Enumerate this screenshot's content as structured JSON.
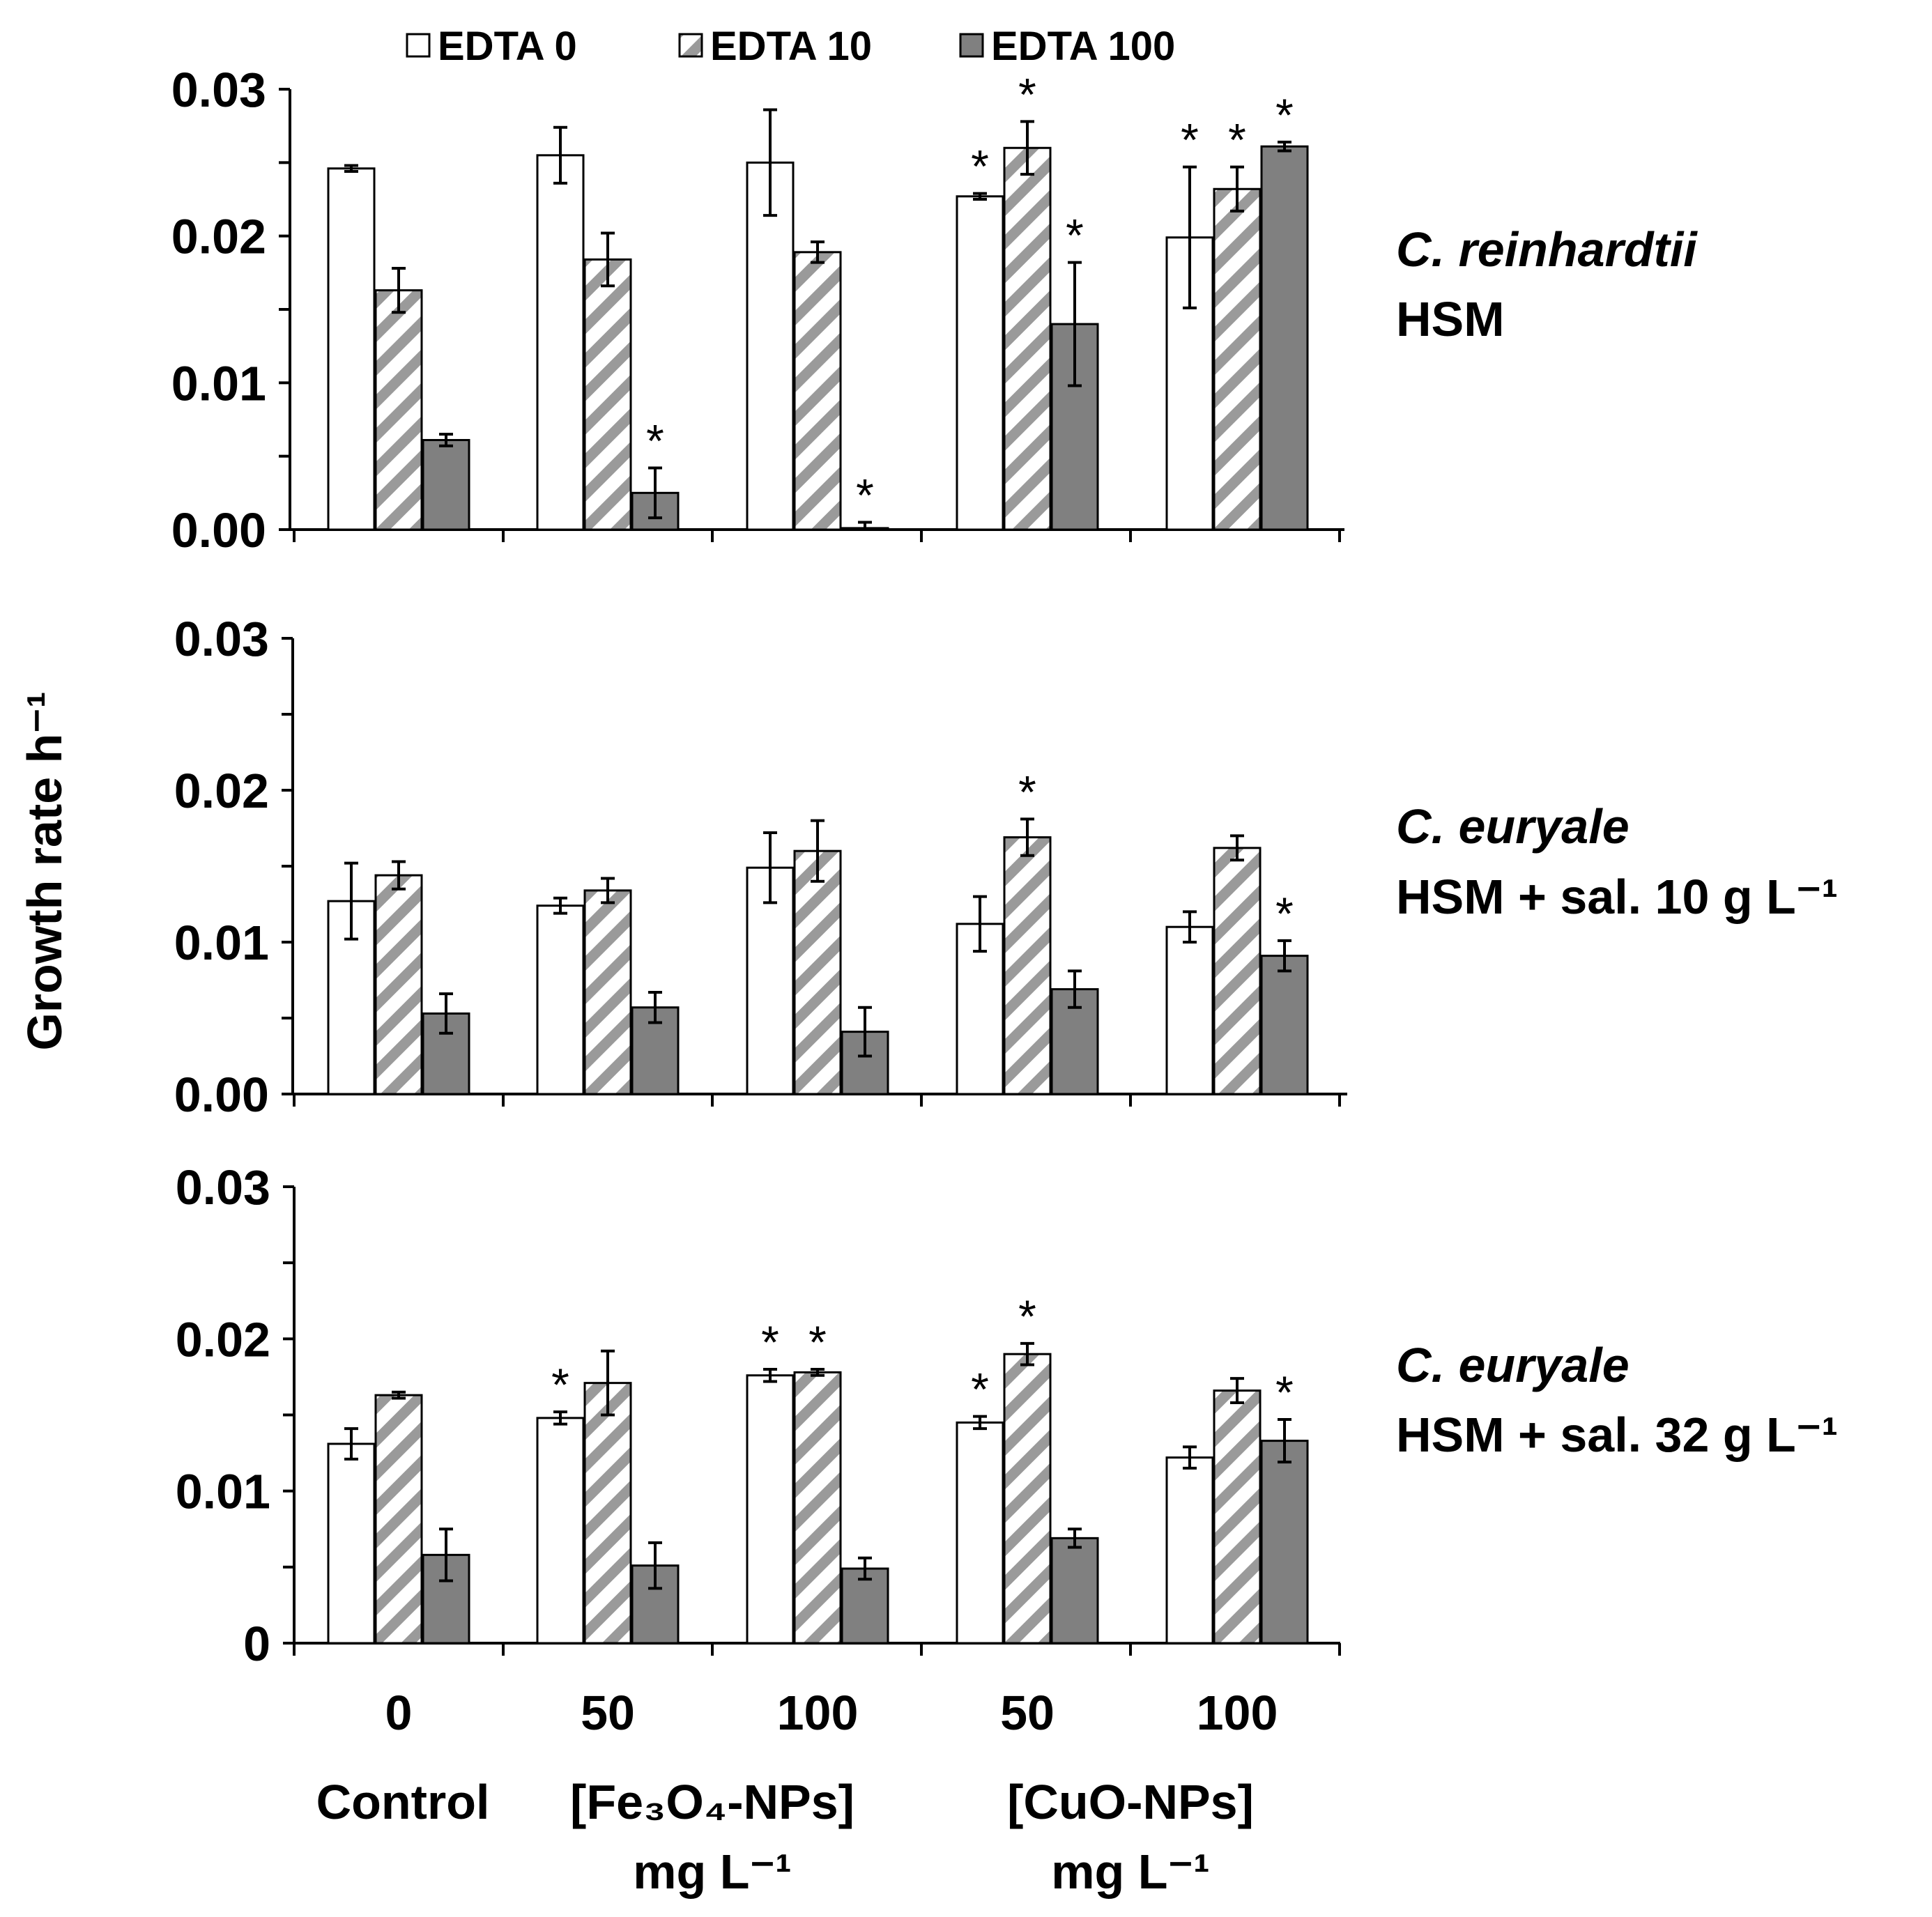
{
  "chart_data": {
    "type": "bar",
    "ylabel": "Growth rate h⁻¹",
    "legend": [
      "EDTA 0",
      "EDTA 10",
      "EDTA 100"
    ],
    "series_colors": [
      "#ffffff",
      "hatch",
      "#808080"
    ],
    "categories": [
      "0",
      "50",
      "100",
      "50",
      "100"
    ],
    "groups": [
      {
        "line1": "Control",
        "line2": ""
      },
      {
        "line1": "[Fe₃O₄-NPs]",
        "line2": "mg L⁻¹"
      },
      {
        "line1": "[CuO-NPs]",
        "line2": "mg L⁻¹"
      }
    ],
    "panels": [
      {
        "label_italic": "C. reinhardtii",
        "label_plain": "HSM",
        "ylim": [
          0,
          0.03
        ],
        "ytick_labels": [
          "0.00",
          "0.01",
          "0.02",
          "0.03"
        ],
        "series": [
          {
            "name": "EDTA 0",
            "values": [
              0.0246,
              0.0255,
              0.025,
              0.0227,
              0.0199
            ],
            "errors": [
              0.0002,
              0.0019,
              0.0036,
              0.0002,
              0.0048
            ],
            "sig": [
              false,
              false,
              false,
              true,
              true
            ]
          },
          {
            "name": "EDTA 10",
            "values": [
              0.0163,
              0.0184,
              0.0189,
              0.026,
              0.0232
            ],
            "errors": [
              0.0015,
              0.0018,
              0.0007,
              0.0018,
              0.0015
            ],
            "sig": [
              false,
              false,
              false,
              true,
              true
            ]
          },
          {
            "name": "EDTA 100",
            "values": [
              0.0061,
              0.0025,
              0.0001,
              0.014,
              0.0261
            ],
            "errors": [
              0.0004,
              0.0017,
              0.0004,
              0.0042,
              0.0003
            ],
            "sig": [
              false,
              true,
              true,
              true,
              true
            ]
          }
        ]
      },
      {
        "label_italic": "C. euryale",
        "label_plain": "HSM + sal. 10 g L⁻¹",
        "ylim": [
          0,
          0.03
        ],
        "ytick_labels": [
          "0.00",
          "0.01",
          "0.02",
          "0.03"
        ],
        "series": [
          {
            "name": "EDTA 0",
            "values": [
              0.0127,
              0.0124,
              0.0149,
              0.0112,
              0.011
            ],
            "errors": [
              0.0025,
              0.0005,
              0.0023,
              0.0018,
              0.001
            ],
            "sig": [
              false,
              false,
              false,
              false,
              false
            ]
          },
          {
            "name": "EDTA 10",
            "values": [
              0.0144,
              0.0134,
              0.016,
              0.0169,
              0.0162
            ],
            "errors": [
              0.0009,
              0.0008,
              0.002,
              0.0012,
              0.0008
            ],
            "sig": [
              false,
              false,
              false,
              true,
              false
            ]
          },
          {
            "name": "EDTA 100",
            "values": [
              0.0053,
              0.0057,
              0.0041,
              0.0069,
              0.0091
            ],
            "errors": [
              0.0013,
              0.001,
              0.0016,
              0.0012,
              0.001
            ],
            "sig": [
              false,
              false,
              false,
              false,
              true
            ]
          }
        ]
      },
      {
        "label_italic": "C. euryale",
        "label_plain": "HSM + sal. 32 g L⁻¹",
        "ylim": [
          0,
          0.03
        ],
        "ytick_labels": [
          "0",
          "0.01",
          "0.02",
          "0.03"
        ],
        "series": [
          {
            "name": "EDTA 0",
            "values": [
              0.0131,
              0.0148,
              0.0176,
              0.0145,
              0.0122
            ],
            "errors": [
              0.001,
              0.0004,
              0.0004,
              0.0004,
              0.0007
            ],
            "sig": [
              false,
              true,
              true,
              true,
              false
            ]
          },
          {
            "name": "EDTA 10",
            "values": [
              0.0163,
              0.0171,
              0.0178,
              0.019,
              0.0166
            ],
            "errors": [
              0.0002,
              0.0021,
              0.0002,
              0.0007,
              0.0008
            ],
            "sig": [
              false,
              false,
              true,
              true,
              false
            ]
          },
          {
            "name": "EDTA 100",
            "values": [
              0.0058,
              0.0051,
              0.0049,
              0.0069,
              0.0133
            ],
            "errors": [
              0.0017,
              0.0015,
              0.0007,
              0.0006,
              0.0014
            ],
            "sig": [
              false,
              false,
              false,
              false,
              true
            ]
          }
        ]
      }
    ]
  }
}
